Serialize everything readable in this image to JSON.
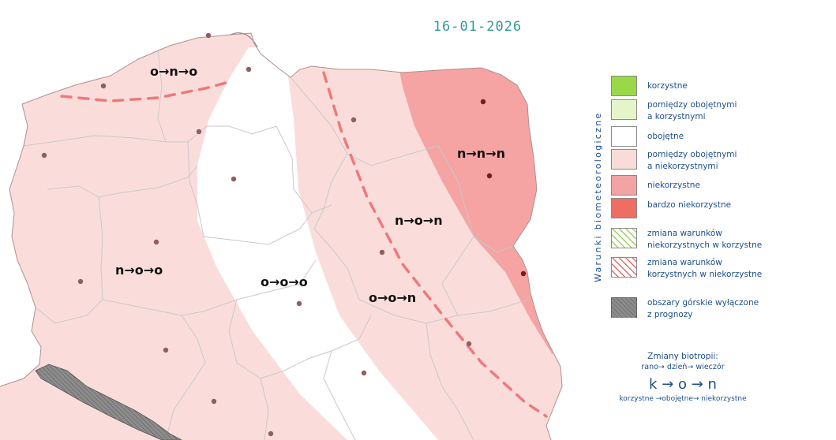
{
  "date": "16-01-2026",
  "regions": [
    {
      "id": "north-west",
      "label": "o→n→o"
    },
    {
      "id": "west",
      "label": "n→o→o"
    },
    {
      "id": "central",
      "label": "o→o→o"
    },
    {
      "id": "east-central",
      "label": "n→o→n"
    },
    {
      "id": "south-east",
      "label": "o→o→n"
    },
    {
      "id": "north-east",
      "label": "n→n→n"
    }
  ],
  "legend": {
    "title": "Warunki biometeorologiczne",
    "items": [
      {
        "label": "korzystne",
        "color": "#9ad84a"
      },
      {
        "label": "pomiędzy obojętnymi\na korzystnymi",
        "color": "#e6f5c9"
      },
      {
        "label": "obojętne",
        "color": "#ffffff"
      },
      {
        "label": "pomiędzy obojętnymi\na niekorzystnymi",
        "color": "#f8dcd8"
      },
      {
        "label": "niekorzystne",
        "color": "#f2a3a3"
      },
      {
        "label": "bardzo niekorzystne",
        "color": "#ee6e64"
      },
      {
        "label": "zmiana warunków\nniekorzystnych w korzystne",
        "color": "#8dc63f"
      },
      {
        "label": "zmiana warunków\nkorzystnych w niekorzystne",
        "color": "#d9534f"
      },
      {
        "label": "obszary górskie wyłączone\nz prognozy",
        "color": "#8c8c8c"
      }
    ]
  },
  "biotropy": {
    "title": "Zmiany biotropii:",
    "steps": "rano→ dzień→ wieczór",
    "formula": "k → o → n",
    "labels": "korzystne →obojętne→ niekorzystne"
  },
  "colors": {
    "light_unfavourable": "#fadddb",
    "unfavourable": "#f5a3a3",
    "neutral": "#ffffff",
    "border": "#c9c9c9",
    "trend_line": "#ee7a7a",
    "city_dot": "#8a6060",
    "mountain": "#8c8c8c"
  }
}
